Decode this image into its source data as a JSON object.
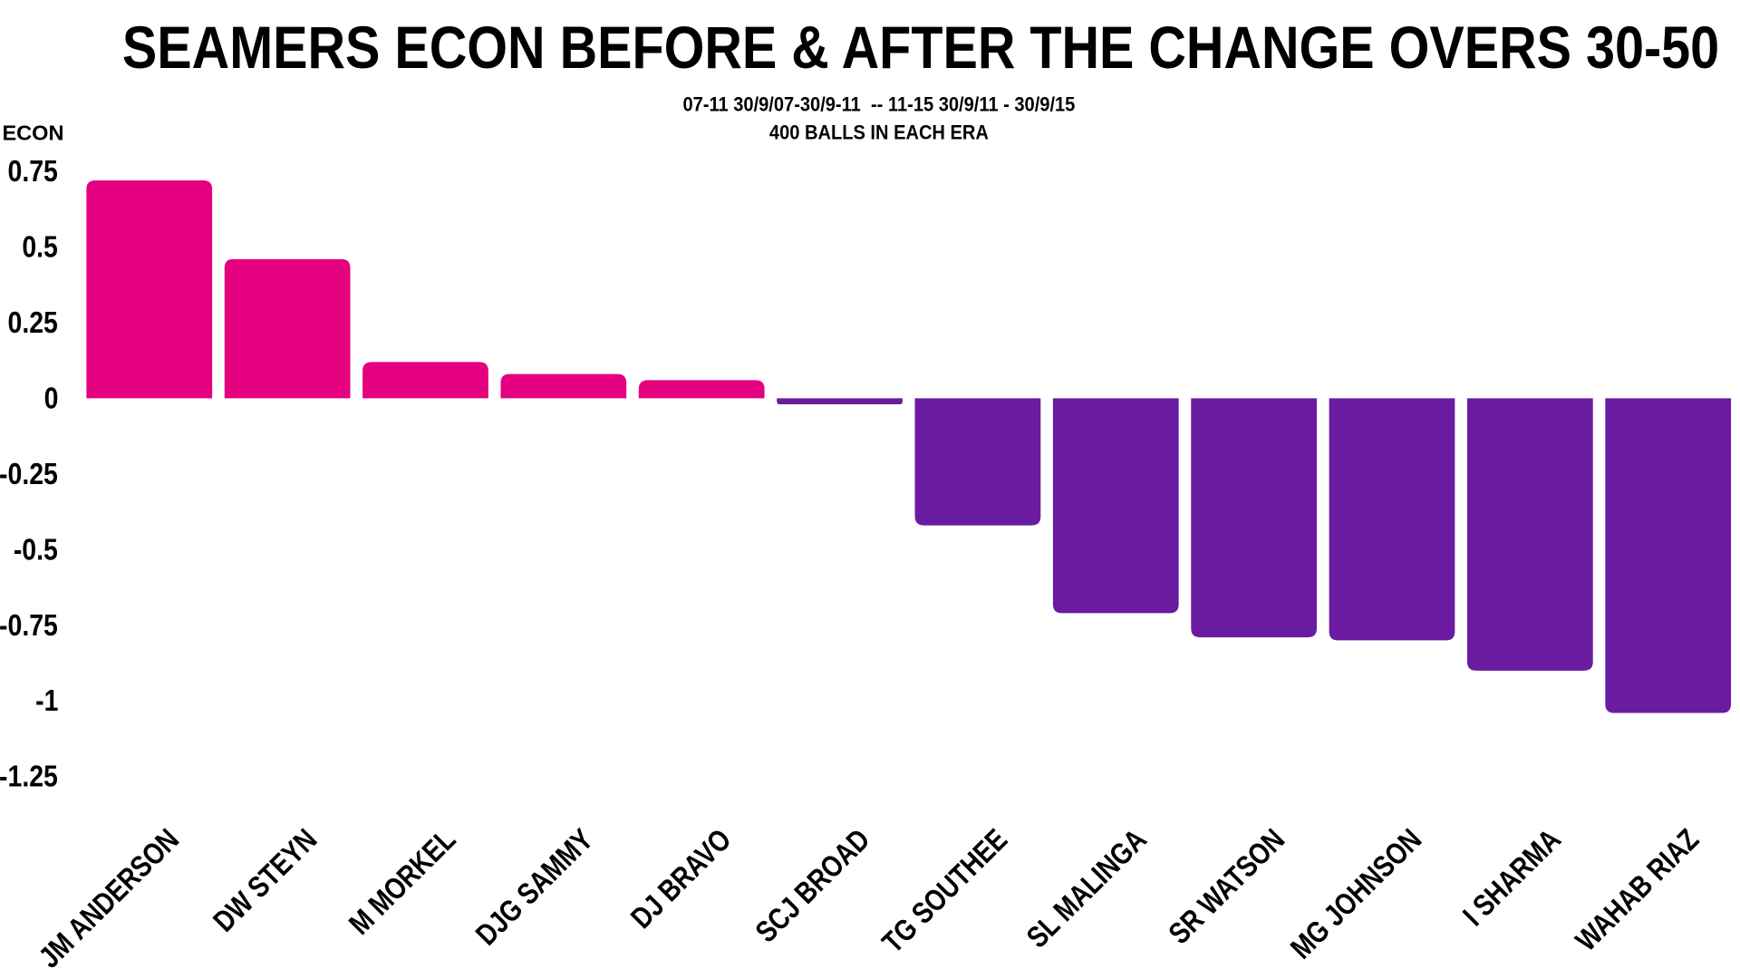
{
  "chart_data": {
    "type": "bar",
    "title": "SEAMERS ECON BEFORE & AFTER THE CHANGE OVERS 30-50",
    "subtitle_lines": [
      "07-11 30/9/07-30/9-11  -- 11-15 30/9/11 - 30/9/15",
      "400 BALLS IN EACH ERA"
    ],
    "ylabel": "ECON",
    "xlabel": "",
    "ylim": [
      -1.25,
      0.75
    ],
    "yticks": [
      "0.75",
      "0.5",
      "0.25",
      "0",
      "-0.25",
      "-0.5",
      "-0.75",
      "-1",
      "-1.25"
    ],
    "ytick_values": [
      0.75,
      0.5,
      0.25,
      0,
      -0.25,
      -0.5,
      -0.75,
      -1,
      -1.25
    ],
    "categories": [
      "JM ANDERSON",
      "DW STEYN",
      "M MORKEL",
      "DJG SAMMY",
      "DJ BRAVO",
      "SCJ BROAD",
      "TG SOUTHEE",
      "SL MALINGA",
      "SR WATSON",
      "MG JOHNSON",
      "I SHARMA",
      "WAHAB RIAZ"
    ],
    "values": [
      0.72,
      0.46,
      0.12,
      0.08,
      0.06,
      -0.02,
      -0.42,
      -0.71,
      -0.79,
      -0.8,
      -0.9,
      -1.04
    ],
    "grid": false,
    "colors": {
      "positive": "#E4007F",
      "negative": "#6A1B9F"
    }
  }
}
